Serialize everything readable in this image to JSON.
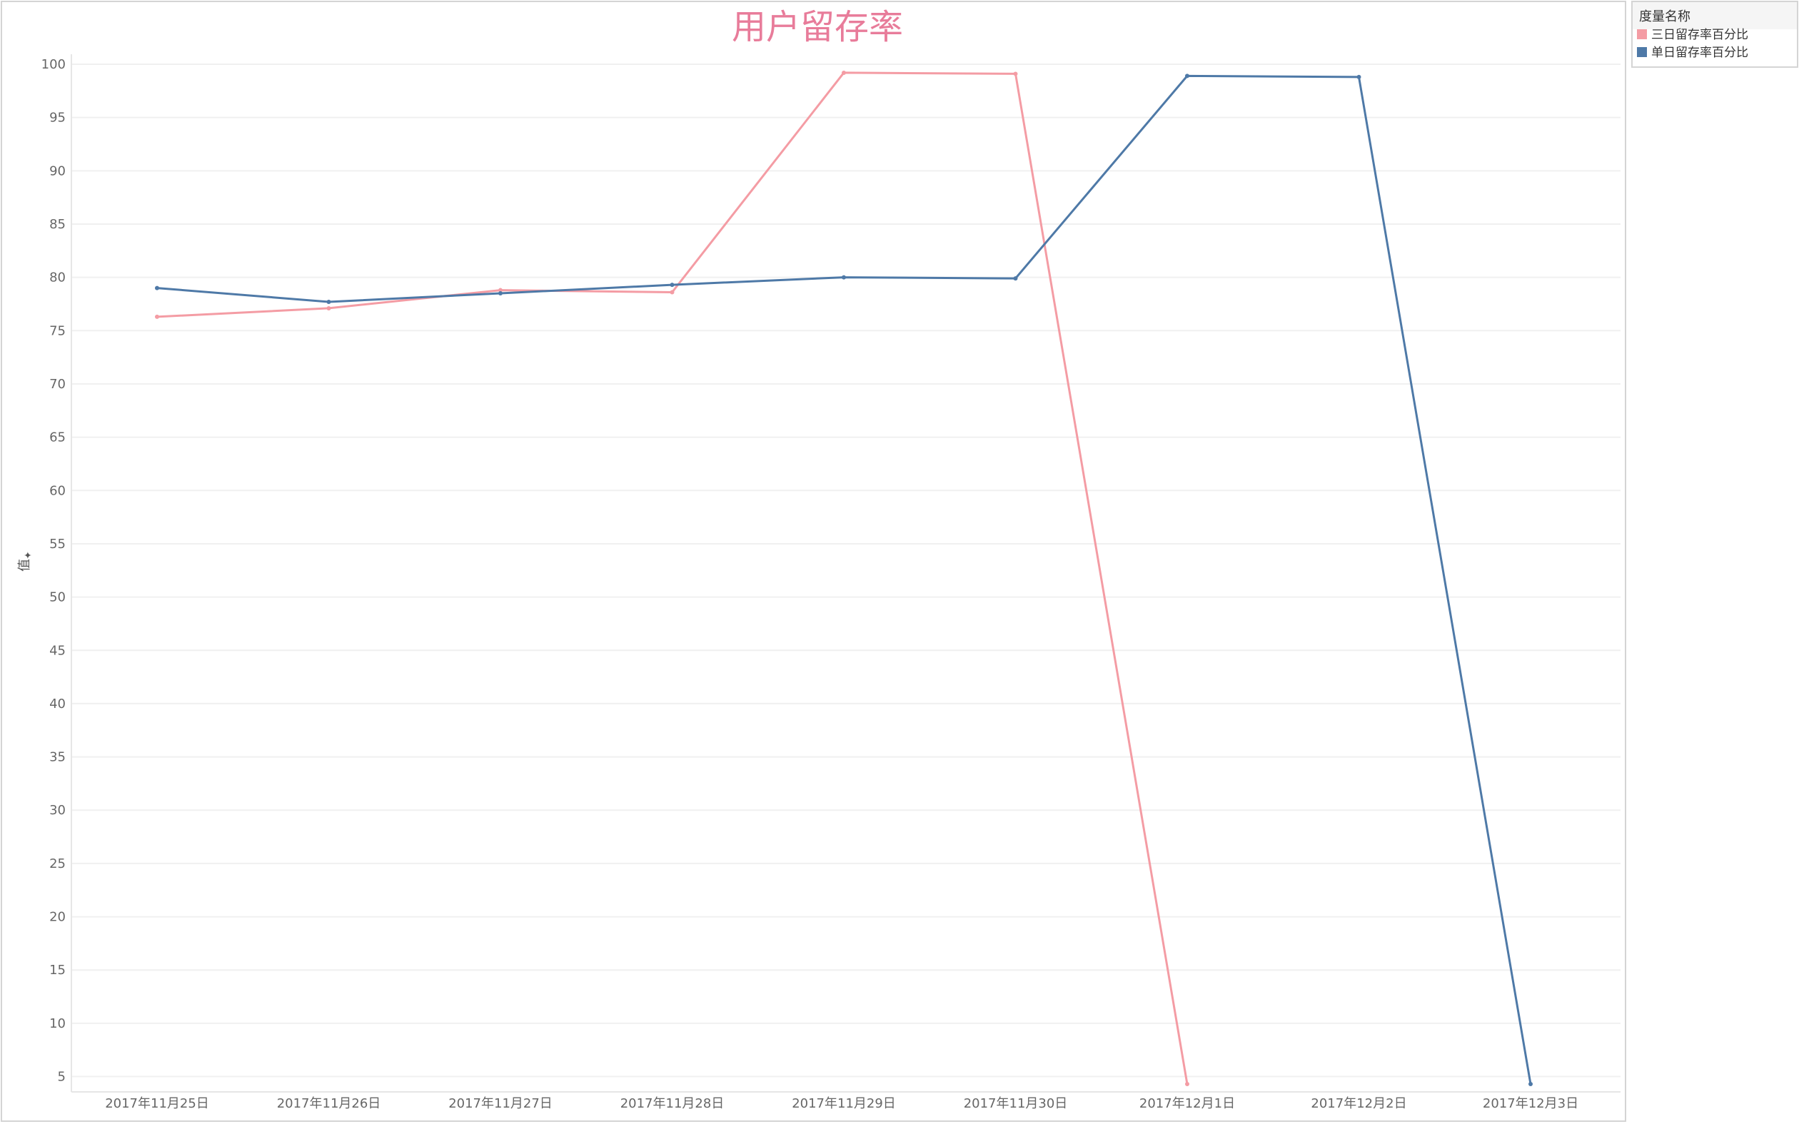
{
  "chart_data": {
    "type": "line",
    "title": "用户留存率",
    "xlabel": "",
    "ylabel": "值",
    "categories": [
      "2017年11月25日",
      "2017年11月26日",
      "2017年11月27日",
      "2017年11月28日",
      "2017年11月29日",
      "2017年11月30日",
      "2017年12月1日",
      "2017年12月2日",
      "2017年12月3日"
    ],
    "y_ticks": [
      5,
      10,
      15,
      20,
      25,
      30,
      35,
      40,
      45,
      50,
      55,
      60,
      65,
      70,
      75,
      80,
      85,
      90,
      95,
      100
    ],
    "ylim": [
      4.3,
      100.8
    ],
    "grid": true,
    "legend": {
      "title": "度量名称",
      "placement": "top-right"
    },
    "series": [
      {
        "name": "三日留存率百分比",
        "color": "#f49ca4",
        "values": [
          76.3,
          77.1,
          78.8,
          78.6,
          99.2,
          99.1,
          4.3,
          null,
          null
        ]
      },
      {
        "name": "单日留存率百分比",
        "color": "#4e79a7",
        "values": [
          79.0,
          77.7,
          78.5,
          79.3,
          80.0,
          79.9,
          98.9,
          98.8,
          4.3
        ]
      }
    ]
  },
  "colors": {
    "title": "#e87c9a",
    "grid": "#f0f0f0",
    "border": "#d4d4d4"
  }
}
